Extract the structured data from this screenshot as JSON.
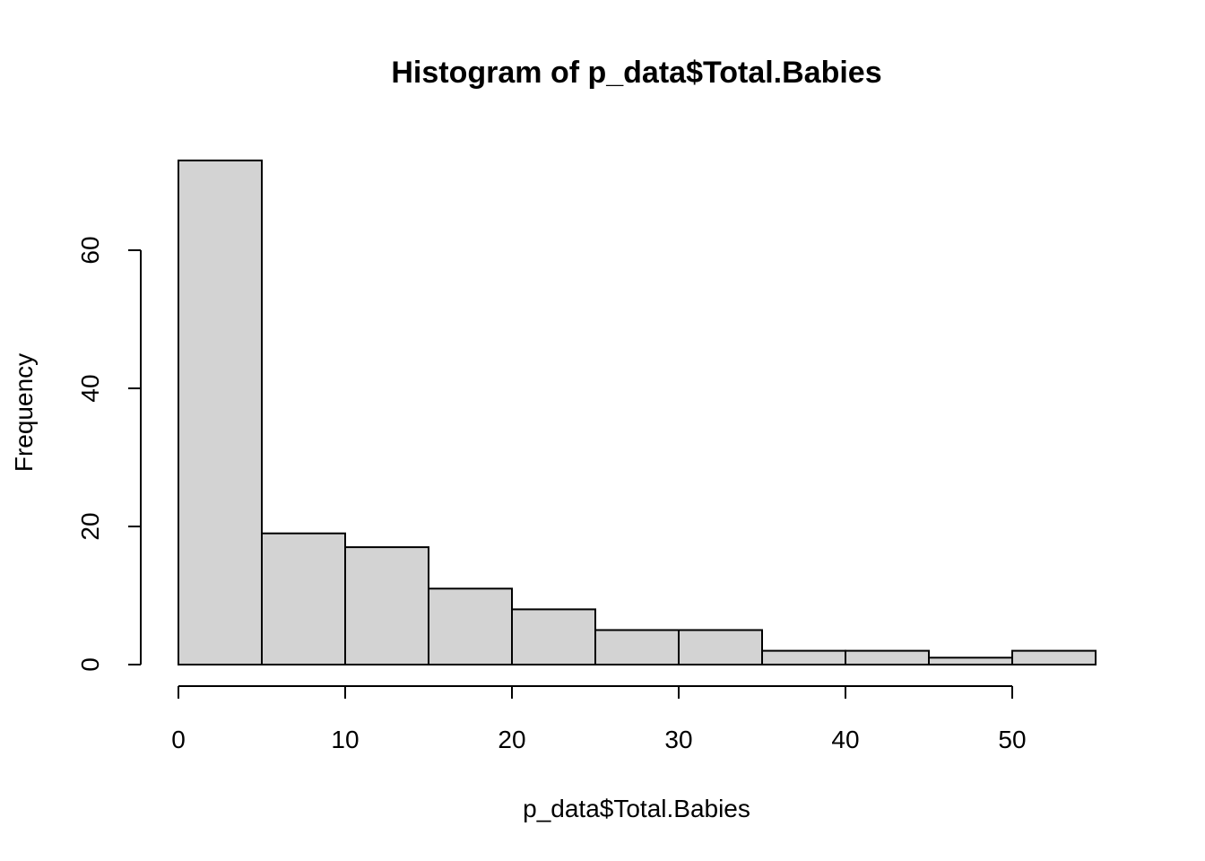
{
  "chart_data": {
    "type": "bar",
    "title": "Histogram of p_data$Total.Babies",
    "xlabel": "p_data$Total.Babies",
    "ylabel": "Frequency",
    "bins": [
      {
        "from": 0,
        "to": 5,
        "count": 73
      },
      {
        "from": 5,
        "to": 10,
        "count": 19
      },
      {
        "from": 10,
        "to": 15,
        "count": 17
      },
      {
        "from": 15,
        "to": 20,
        "count": 11
      },
      {
        "from": 20,
        "to": 25,
        "count": 8
      },
      {
        "from": 25,
        "to": 30,
        "count": 5
      },
      {
        "from": 30,
        "to": 35,
        "count": 5
      },
      {
        "from": 35,
        "to": 40,
        "count": 2
      },
      {
        "from": 40,
        "to": 45,
        "count": 2
      },
      {
        "from": 45,
        "to": 50,
        "count": 1
      },
      {
        "from": 50,
        "to": 55,
        "count": 2
      }
    ],
    "x_ticks": [
      0,
      10,
      20,
      30,
      40,
      50
    ],
    "y_ticks": [
      0,
      20,
      40,
      60
    ],
    "xlim": [
      0,
      55
    ],
    "ylim": [
      0,
      73
    ],
    "grid": false,
    "bar_fill": "#d3d3d3",
    "bar_stroke": "#000000"
  }
}
